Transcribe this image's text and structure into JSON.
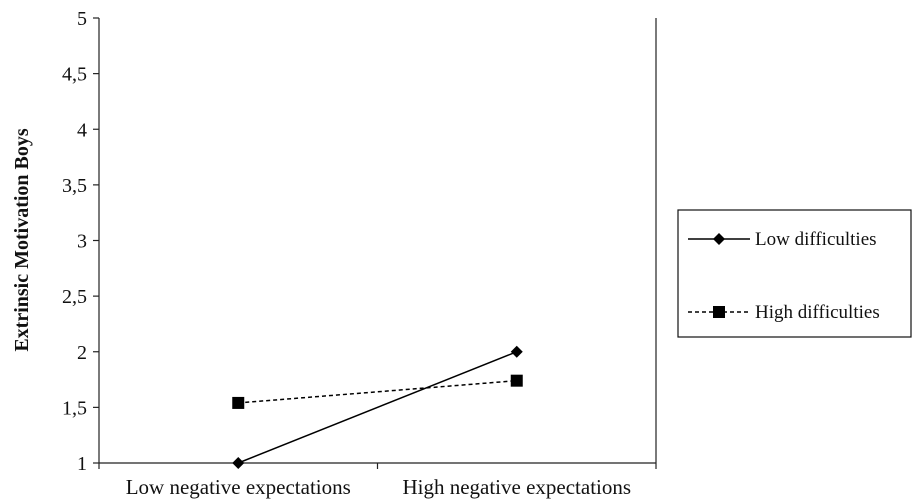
{
  "chart_data": {
    "type": "line",
    "title": "",
    "xlabel": "",
    "ylabel": "Extrinsic Motivation  Boys",
    "categories": [
      "Low negative expectations",
      "High negative expectations"
    ],
    "series": [
      {
        "name": "Low difficulties",
        "values": [
          1.0,
          2.0
        ],
        "line_style": "solid",
        "marker": "diamond",
        "color": "#000000"
      },
      {
        "name": "High difficulties",
        "values": [
          1.54,
          1.74
        ],
        "line_style": "dashed",
        "marker": "square",
        "color": "#000000"
      }
    ],
    "ylim": [
      1,
      5
    ],
    "yticks": [
      "1",
      "1,5",
      "2",
      "2,5",
      "3",
      "3,5",
      "4",
      "4,5",
      "5"
    ],
    "grid": false,
    "legend_position": "right"
  }
}
